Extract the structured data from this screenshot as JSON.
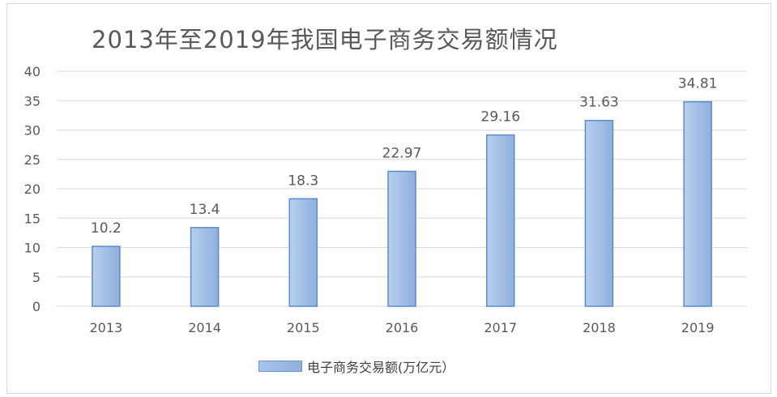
{
  "chart_data": {
    "type": "bar",
    "title": "2013年至2019年我国电子商务交易额情况",
    "categories": [
      "2013",
      "2014",
      "2015",
      "2016",
      "2017",
      "2018",
      "2019"
    ],
    "series": [
      {
        "name": "电子商务交易额(万亿元）",
        "values": [
          10.2,
          13.4,
          18.3,
          22.97,
          29.16,
          31.63,
          34.81
        ]
      }
    ],
    "data_labels": [
      "10.2",
      "13.4",
      "18.3",
      "22.97",
      "29.16",
      "31.63",
      "34.81"
    ],
    "xlabel": "",
    "ylabel": "",
    "ylim": [
      0,
      40
    ],
    "yticks": [
      0,
      5,
      10,
      15,
      20,
      25,
      30,
      35,
      40
    ],
    "grid": true,
    "legend_position": "bottom",
    "colors": {
      "bar_fill": "#a7c2e6",
      "bar_stroke": "#5b8cc8",
      "grid": "#d9d9d9",
      "text": "#595959"
    }
  }
}
